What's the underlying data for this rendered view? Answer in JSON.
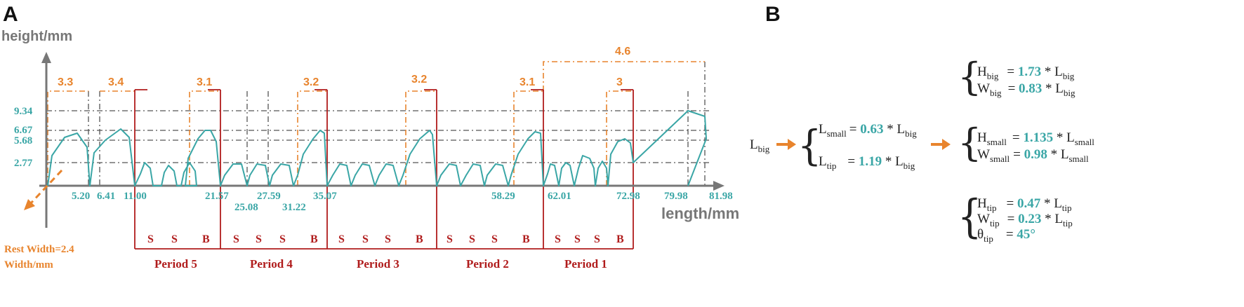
{
  "panel_a": {
    "letter": "A",
    "y_axis_title": "height/mm",
    "x_axis_title": "length/mm",
    "rest_width_label": "Rest Width=2.4",
    "width_label": "Width/mm",
    "y_ticks": [
      "9.34",
      "6.67",
      "5.68",
      "2.77"
    ],
    "x_ticks": [
      "5.20",
      "6.41",
      "11.00",
      "21.57",
      "25.08",
      "27.59",
      "31.22",
      "35.07",
      "58.29",
      "62.01",
      "72.98",
      "79.98",
      "81.98"
    ],
    "span_labels": [
      "3.3",
      "3.4",
      "3.1",
      "3.2",
      "3.2",
      "3.1",
      "3",
      "4.6"
    ],
    "segments": [
      {
        "letters": [
          "S",
          "S",
          "B"
        ],
        "label": "Period 5"
      },
      {
        "letters": [
          "S",
          "S",
          "S",
          "B"
        ],
        "label": "Period 4"
      },
      {
        "letters": [
          "S",
          "S",
          "S",
          "B"
        ],
        "label": "Period 3"
      },
      {
        "letters": [
          "S",
          "S",
          "S",
          "B"
        ],
        "label": "Period 2"
      },
      {
        "letters": [
          "S",
          "S",
          "S",
          "B"
        ],
        "label": "Period 1"
      }
    ]
  },
  "panel_b": {
    "letter": "B",
    "left_symbol": {
      "base": "L",
      "sub": "big"
    },
    "mid": [
      {
        "lhs": "L",
        "lhs_sub": "small",
        "op": "= ",
        "val": "0.63",
        "rhs": " * L",
        "rhs_sub": "big"
      },
      {
        "lhs": "L",
        "lhs_sub": "tip",
        "op": "= ",
        "val": "1.19",
        "rhs": " * L",
        "rhs_sub": "big"
      }
    ],
    "groups": [
      [
        {
          "lhs": "H",
          "lhs_sub": "big",
          "op": "= ",
          "val": "1.73",
          "rhs": " * L",
          "rhs_sub": "big"
        },
        {
          "lhs": "W",
          "lhs_sub": "big",
          "op": "= ",
          "val": "0.83",
          "rhs": " * L",
          "rhs_sub": "big"
        }
      ],
      [
        {
          "lhs": "H",
          "lhs_sub": "small",
          "op": "= ",
          "val": "1.135",
          "rhs": " * L",
          "rhs_sub": "small"
        },
        {
          "lhs": "W",
          "lhs_sub": "small",
          "op": "= ",
          "val": "0.98",
          "rhs": " * L",
          "rhs_sub": "small"
        }
      ],
      [
        {
          "lhs": "H",
          "lhs_sub": "tip",
          "op": "= ",
          "val": "0.47",
          "rhs": " * L",
          "rhs_sub": "tip"
        },
        {
          "lhs": "W",
          "lhs_sub": "tip",
          "op": "= ",
          "val": "0.23",
          "rhs": " * L",
          "rhs_sub": "tip"
        },
        {
          "lhs": "θ",
          "lhs_sub": "tip",
          "op": "= ",
          "val": "45°",
          "rhs": "",
          "rhs_sub": ""
        }
      ]
    ]
  },
  "colors": {
    "teal": "#3aa6a6",
    "orange": "#e8842d",
    "red": "#b01c1c",
    "axis": "#777777",
    "grid": "#555555"
  }
}
